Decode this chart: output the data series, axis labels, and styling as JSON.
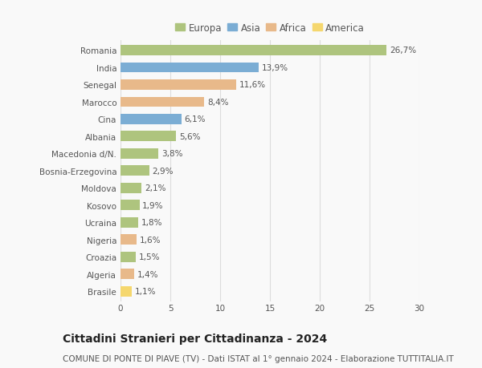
{
  "countries": [
    "Romania",
    "India",
    "Senegal",
    "Marocco",
    "Cina",
    "Albania",
    "Macedonia d/N.",
    "Bosnia-Erzegovina",
    "Moldova",
    "Kosovo",
    "Ucraina",
    "Nigeria",
    "Croazia",
    "Algeria",
    "Brasile"
  ],
  "values": [
    26.7,
    13.9,
    11.6,
    8.4,
    6.1,
    5.6,
    3.8,
    2.9,
    2.1,
    1.9,
    1.8,
    1.6,
    1.5,
    1.4,
    1.1
  ],
  "labels": [
    "26,7%",
    "13,9%",
    "11,6%",
    "8,4%",
    "6,1%",
    "5,6%",
    "3,8%",
    "2,9%",
    "2,1%",
    "1,9%",
    "1,8%",
    "1,6%",
    "1,5%",
    "1,4%",
    "1,1%"
  ],
  "continents": [
    "Europa",
    "Asia",
    "Africa",
    "Africa",
    "Asia",
    "Europa",
    "Europa",
    "Europa",
    "Europa",
    "Europa",
    "Europa",
    "Africa",
    "Europa",
    "Africa",
    "America"
  ],
  "continent_colors": {
    "Europa": "#aec47e",
    "Asia": "#7badd4",
    "Africa": "#e8b98a",
    "America": "#f5d76e"
  },
  "legend_order": [
    "Europa",
    "Asia",
    "Africa",
    "America"
  ],
  "legend_colors": [
    "#aec47e",
    "#7badd4",
    "#e8b98a",
    "#f5d76e"
  ],
  "xlim": [
    0,
    30
  ],
  "xticks": [
    0,
    5,
    10,
    15,
    20,
    25,
    30
  ],
  "title": "Cittadini Stranieri per Cittadinanza - 2024",
  "subtitle": "COMUNE DI PONTE DI PIAVE (TV) - Dati ISTAT al 1° gennaio 2024 - Elaborazione TUTTITALIA.IT",
  "background_color": "#f9f9f9",
  "grid_color": "#dddddd",
  "bar_height": 0.6,
  "title_fontsize": 10,
  "subtitle_fontsize": 7.5,
  "label_fontsize": 7.5,
  "tick_fontsize": 7.5,
  "legend_fontsize": 8.5
}
